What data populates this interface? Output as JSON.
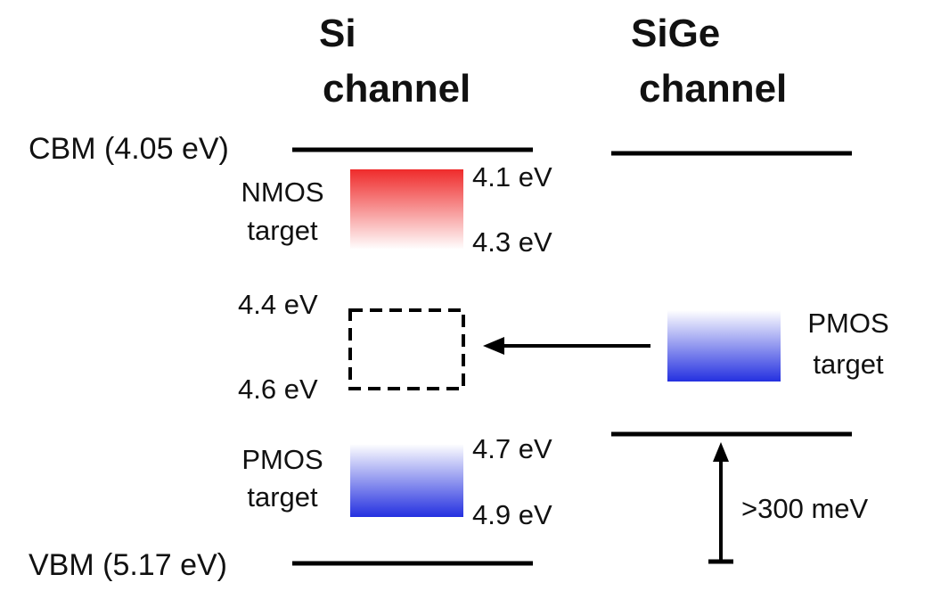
{
  "columns": {
    "si": {
      "line1": "Si",
      "line2": "channel"
    },
    "sige": {
      "line1": "SiGe",
      "line2": "channel"
    }
  },
  "bands": {
    "cbm": "CBM (4.05 eV)",
    "vbm": "VBM (5.17 eV)"
  },
  "si_targets": {
    "nmos": {
      "label1": "NMOS",
      "label2": "target",
      "top": "4.1 eV",
      "bottom": "4.3 eV",
      "color": "#ef2b2b"
    },
    "midgap": {
      "top": "4.4 eV",
      "bottom": "4.6 eV"
    },
    "pmos": {
      "label1": "PMOS",
      "label2": "target",
      "top": "4.7 eV",
      "bottom": "4.9 eV",
      "color": "#2430e0"
    }
  },
  "sige_targets": {
    "pmos": {
      "label1": "PMOS",
      "label2": "target",
      "color": "#2430e0"
    },
    "offset": ">300 meV"
  }
}
